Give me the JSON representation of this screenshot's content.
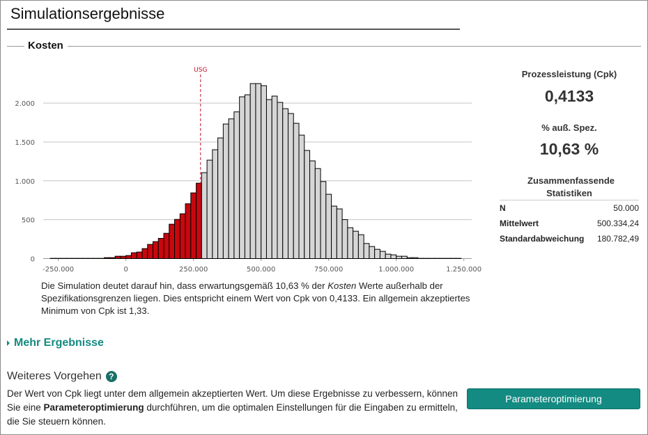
{
  "header": {
    "title": "Simulationsergebnisse"
  },
  "section": {
    "title": "Kosten"
  },
  "chart_data": {
    "type": "bar",
    "subtype": "histogram",
    "bin_start": -280000,
    "bin_width": 20000,
    "values": [
      3,
      3,
      3,
      3,
      3,
      3,
      3,
      3,
      3,
      3,
      12,
      12,
      30,
      30,
      39,
      75,
      84,
      128,
      182,
      218,
      260,
      325,
      442,
      504,
      576,
      705,
      845,
      970,
      1105,
      1266,
      1400,
      1552,
      1731,
      1797,
      1887,
      2081,
      2107,
      2251,
      2251,
      2224,
      2045,
      2090,
      2009,
      1928,
      1866,
      1740,
      1588,
      1391,
      1257,
      1158,
      991,
      827,
      675,
      639,
      501,
      397,
      352,
      307,
      194,
      155,
      119,
      93,
      57,
      48,
      30,
      30,
      12,
      12,
      3,
      3,
      3,
      3,
      3,
      3,
      3,
      3
    ],
    "xlim": [
      -300000,
      1250000
    ],
    "ylim": [
      0,
      2300
    ],
    "x_ticks": [
      -250000,
      0,
      250000,
      500000,
      750000,
      1000000,
      1250000
    ],
    "x_tick_labels": [
      "-250.000",
      "0",
      "250.000",
      "500.000",
      "750.000",
      "1.000.000",
      "1.250.000"
    ],
    "y_ticks": [
      0,
      500,
      1000,
      1500,
      2000
    ],
    "y_tick_labels": [
      "0",
      "500",
      "1.000",
      "1.500",
      "2.000"
    ],
    "grid": true,
    "spec_limit": {
      "label": "USG",
      "value": 276000,
      "color": "#c0102a"
    },
    "colors": {
      "out_of_spec": "#c8070e",
      "in_spec": "#d6d6d6",
      "edge": "#000000"
    }
  },
  "description": {
    "p1": "Die Simulation deutet darauf hin, dass erwartungsgemäß 10,63 % der ",
    "em": "Kosten",
    "p2": " Werte außerhalb der Spezifikationsgrenzen liegen. Dies entspricht einem Wert von Cpk von 0,4133. Ein allgemein akzeptiertes Minimum von Cpk ist 1,33."
  },
  "stats": {
    "cpk_label": "Prozessleistung (Cpk)",
    "cpk_value": "0,4133",
    "out_label": "% auß. Spez.",
    "out_value": "10,63 %",
    "summary_title": "Zusammenfassende Statistiken",
    "rows": [
      {
        "k": "N",
        "v": "50.000"
      },
      {
        "k": "Mittelwert",
        "v": "500.334,24"
      },
      {
        "k": "Standardabweichung",
        "v": "180.782,49"
      }
    ]
  },
  "more": {
    "label": "Mehr Ergebnisse"
  },
  "next": {
    "title": "Weiteres Vorgehen",
    "help": "?",
    "t1": "Der Wert von Cpk liegt unter dem allgemein akzeptierten Wert. Um diese Ergebnisse zu verbessern, können Sie eine ",
    "bold": "Parameteroptimierung",
    "t2": " durchführen, um die optimalen Einstellungen für die Eingaben zu ermitteln, die Sie steuern können.",
    "button": "Parameteroptimierung"
  },
  "colors": {
    "accent": "#138b82"
  }
}
